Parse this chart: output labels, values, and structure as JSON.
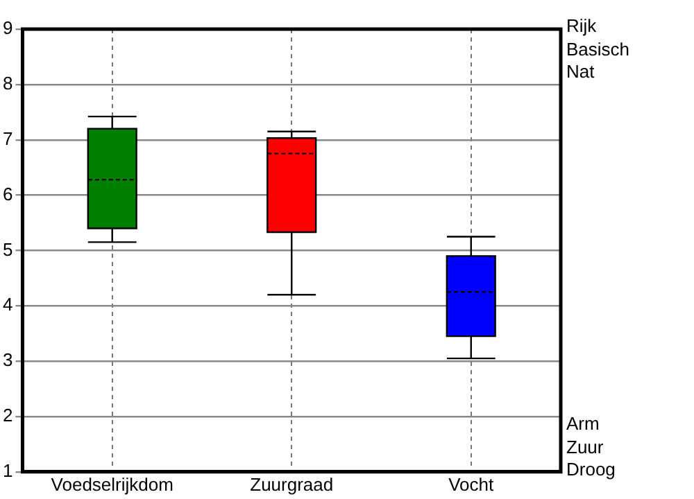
{
  "chart_data": {
    "type": "box",
    "categories": [
      "Voedselrijkdom",
      "Zuurgraad",
      "Vocht"
    ],
    "boxes": [
      {
        "low": 5.15,
        "q1": 5.4,
        "median": 6.28,
        "q3": 7.2,
        "high": 7.42
      },
      {
        "low": 4.2,
        "q1": 5.33,
        "median": 6.75,
        "q3": 7.03,
        "high": 7.15
      },
      {
        "low": 3.05,
        "q1": 3.45,
        "median": 4.25,
        "q3": 4.9,
        "high": 5.25
      }
    ],
    "colors": [
      "#008000",
      "#ff0000",
      "#0000ff"
    ],
    "ylim": [
      1,
      9
    ],
    "yticks": [
      1,
      2,
      3,
      4,
      5,
      6,
      7,
      8,
      9
    ],
    "grid": true,
    "annotations": [
      "Rijk\nBasisch\nNat",
      "Arm\nZuur\nDroog"
    ]
  }
}
